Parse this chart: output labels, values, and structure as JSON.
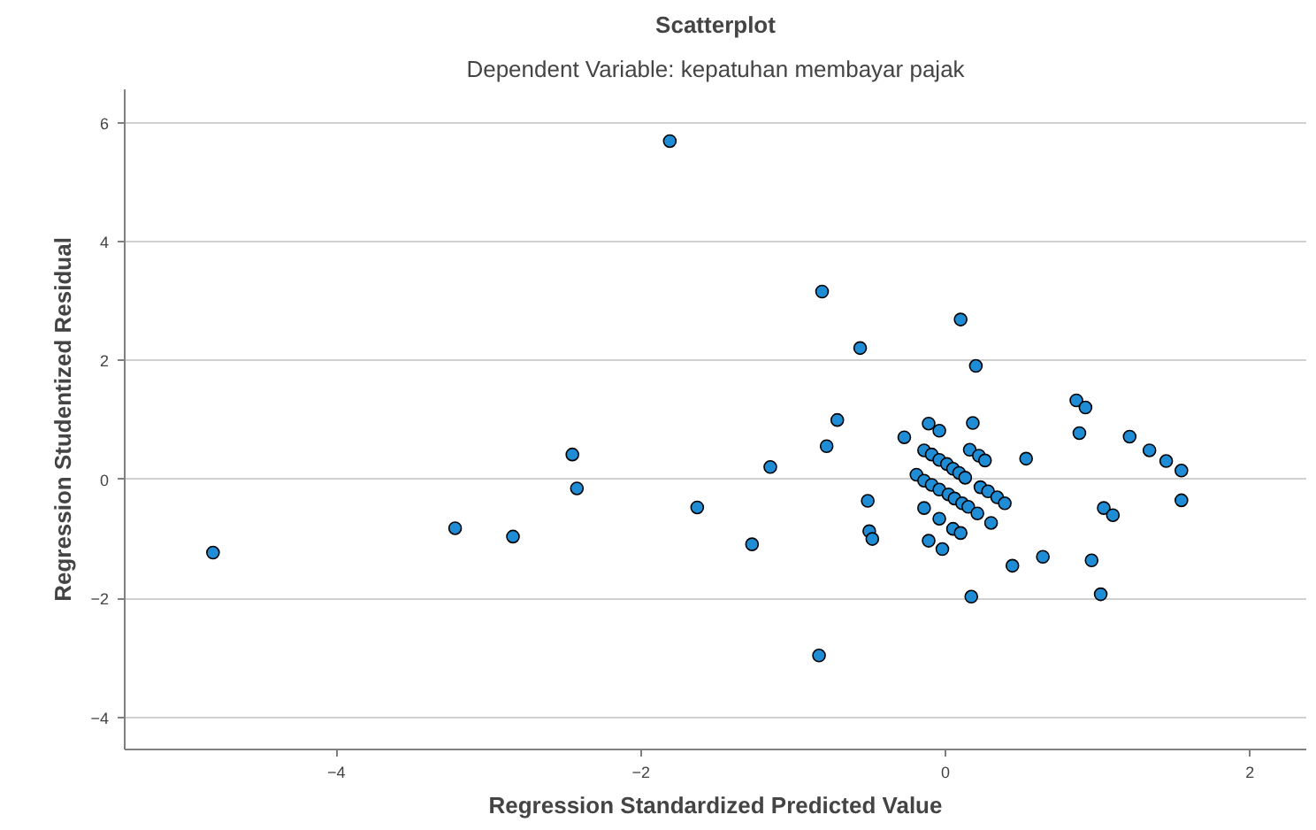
{
  "chart_data": {
    "type": "scatter",
    "title": "Scatterplot",
    "subtitle": "Dependent Variable: kepatuhan membayar pajak",
    "xlabel": "Regression Standardized Predicted Value",
    "ylabel": "Regression Studentized Residual",
    "xlim": [
      -5.39,
      2.37
    ],
    "ylim": [
      -4.54,
      6.56
    ],
    "xticks": [
      -4,
      -2,
      0,
      2
    ],
    "yticks": [
      -4,
      -2,
      0,
      2,
      4,
      6
    ],
    "grid": "y",
    "marker": "circle",
    "series": [
      {
        "color": "#1f8dd6",
        "x": [
          -4.81,
          -1.81,
          -3.22,
          -2.84,
          -2.45,
          -2.42,
          -1.63,
          -0.81,
          0.1,
          -0.56,
          0.2,
          -0.71,
          -0.78,
          -1.15,
          -1.27,
          -0.51,
          -0.5,
          -0.48,
          -0.83,
          -0.27,
          -0.11,
          -0.04,
          0.18,
          -0.14,
          -0.09,
          -0.04,
          0.01,
          0.05,
          0.09,
          0.13,
          0.16,
          0.22,
          0.26,
          -0.19,
          -0.14,
          -0.09,
          -0.04,
          0.02,
          0.06,
          0.11,
          0.15,
          0.23,
          0.28,
          0.34,
          0.39,
          0.21,
          0.3,
          -0.14,
          -0.04,
          0.05,
          0.1,
          -0.11,
          -0.02,
          0.17,
          0.44,
          0.64,
          0.53,
          0.86,
          0.92,
          0.88,
          1.21,
          1.34,
          1.45,
          1.55,
          1.55,
          1.04,
          1.1,
          0.96,
          1.02
        ],
        "values": [
          -1.23,
          5.69,
          -0.82,
          -0.96,
          0.42,
          -0.15,
          -0.47,
          3.16,
          2.69,
          2.21,
          1.91,
          1.0,
          0.56,
          0.21,
          -1.09,
          -0.36,
          -0.87,
          -1.0,
          -2.96,
          0.71,
          0.94,
          0.82,
          0.95,
          0.49,
          0.42,
          0.33,
          0.26,
          0.18,
          0.11,
          0.03,
          0.5,
          0.4,
          0.32,
          0.08,
          -0.02,
          -0.09,
          -0.17,
          -0.25,
          -0.32,
          -0.4,
          -0.46,
          -0.13,
          -0.2,
          -0.3,
          -0.4,
          -0.57,
          -0.73,
          -0.48,
          -0.66,
          -0.83,
          -0.9,
          -1.03,
          -1.17,
          -1.97,
          -1.45,
          -1.3,
          0.35,
          1.33,
          1.21,
          0.78,
          0.72,
          0.49,
          0.31,
          0.15,
          -0.35,
          -0.48,
          -0.6,
          -1.36,
          -1.93
        ]
      }
    ]
  }
}
